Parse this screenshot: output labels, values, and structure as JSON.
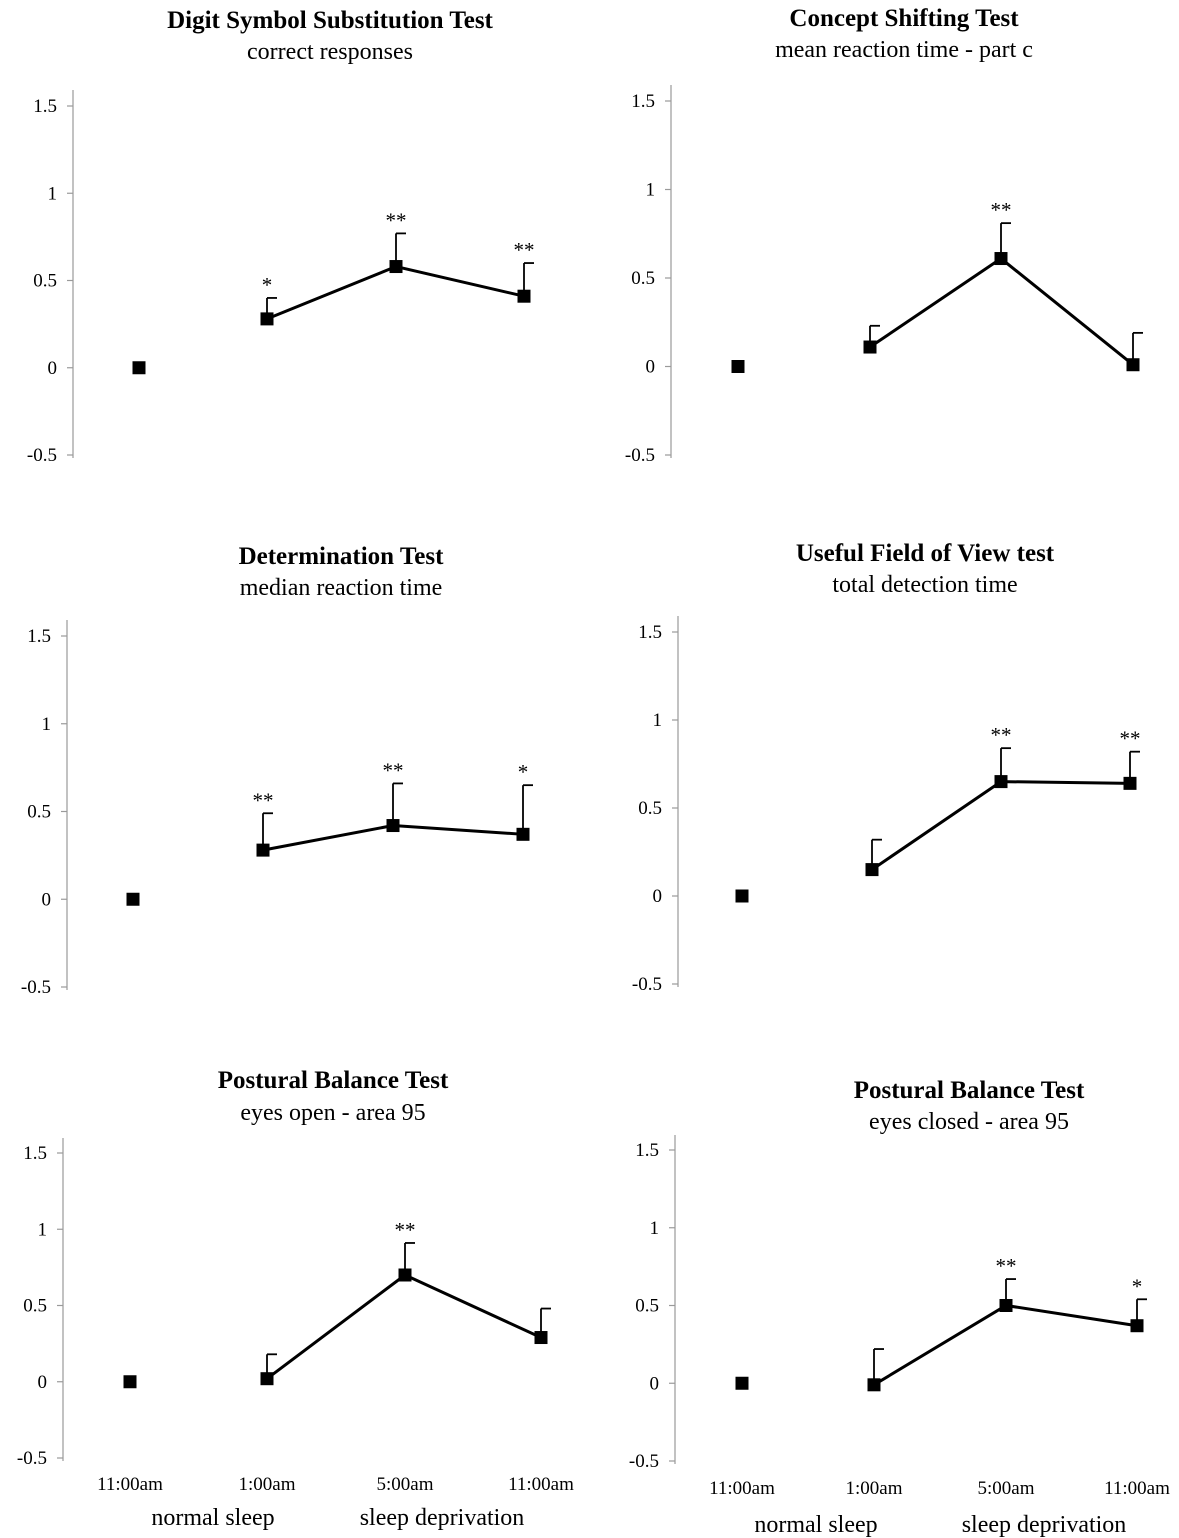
{
  "figure": {
    "x_categories": [
      "11:00am",
      "1:00am",
      "5:00am",
      "11:00am"
    ],
    "x_groups": [
      "normal sleep",
      "sleep deprivation"
    ]
  },
  "chart_data": [
    {
      "type": "line",
      "title": "Digit Symbol Substitution Test",
      "subtitle": "correct responses",
      "categories": [
        "11:00am",
        "1:00am",
        "5:00am",
        "11:00am"
      ],
      "values": [
        0,
        0.28,
        0.58,
        0.41
      ],
      "error_upper": [
        null,
        0.4,
        0.77,
        0.6
      ],
      "significance": [
        "",
        "*",
        "**",
        "**"
      ],
      "connected_from_index": 1,
      "ylim": [
        -0.5,
        1.5
      ],
      "yticks": [
        "1.5",
        "1",
        "0.5",
        "0",
        "-0.5"
      ],
      "grid": false
    },
    {
      "type": "line",
      "title": "Concept Shifting Test",
      "subtitle": "mean reaction time - part c",
      "categories": [
        "11:00am",
        "1:00am",
        "5:00am",
        "11:00am"
      ],
      "values": [
        0,
        0.11,
        0.61,
        0.01
      ],
      "error_upper": [
        null,
        0.23,
        0.81,
        0.19
      ],
      "significance": [
        "",
        "",
        "**",
        ""
      ],
      "connected_from_index": 1,
      "ylim": [
        -0.5,
        1.5
      ],
      "yticks": [
        "1.5",
        "1",
        "0.5",
        "0",
        "-0.5"
      ],
      "grid": false
    },
    {
      "type": "line",
      "title": "Determination Test",
      "subtitle": "median reaction time",
      "categories": [
        "11:00am",
        "1:00am",
        "5:00am",
        "11:00am"
      ],
      "values": [
        0,
        0.28,
        0.42,
        0.37
      ],
      "error_upper": [
        null,
        0.49,
        0.66,
        0.65
      ],
      "significance": [
        "",
        "**",
        "**",
        "*"
      ],
      "connected_from_index": 1,
      "ylim": [
        -0.5,
        1.5
      ],
      "yticks": [
        "1.5",
        "1",
        "0.5",
        "0",
        "-0.5"
      ],
      "grid": false
    },
    {
      "type": "line",
      "title": "Useful Field of View test",
      "subtitle": "total detection time",
      "categories": [
        "11:00am",
        "1:00am",
        "5:00am",
        "11:00am"
      ],
      "values": [
        0,
        0.15,
        0.65,
        0.64
      ],
      "error_upper": [
        null,
        0.32,
        0.84,
        0.82
      ],
      "significance": [
        "",
        "",
        "**",
        "**"
      ],
      "connected_from_index": 1,
      "ylim": [
        -0.5,
        1.5
      ],
      "yticks": [
        "1.5",
        "1",
        "0.5",
        "0",
        "-0.5"
      ],
      "grid": false
    },
    {
      "type": "line",
      "title": "Postural Balance Test",
      "subtitle": "eyes open - area 95",
      "categories": [
        "11:00am",
        "1:00am",
        "5:00am",
        "11:00am"
      ],
      "values": [
        0,
        0.02,
        0.7,
        0.29
      ],
      "error_upper": [
        null,
        0.18,
        0.91,
        0.48
      ],
      "significance": [
        "",
        "",
        "**",
        ""
      ],
      "connected_from_index": 1,
      "ylim": [
        -0.5,
        1.5
      ],
      "yticks": [
        "1.5",
        "1",
        "0.5",
        "0",
        "-0.5"
      ],
      "grid": false
    },
    {
      "type": "line",
      "title": "Postural Balance Test",
      "subtitle": "eyes closed - area 95",
      "categories": [
        "11:00am",
        "1:00am",
        "5:00am",
        "11:00am"
      ],
      "values": [
        0,
        -0.01,
        0.5,
        0.37
      ],
      "error_upper": [
        null,
        0.22,
        0.67,
        0.54
      ],
      "significance": [
        "",
        "",
        "**",
        "*"
      ],
      "connected_from_index": 1,
      "ylim": [
        -0.5,
        1.5
      ],
      "yticks": [
        "1.5",
        "1",
        "0.5",
        "0",
        "-0.5"
      ],
      "grid": false
    }
  ]
}
